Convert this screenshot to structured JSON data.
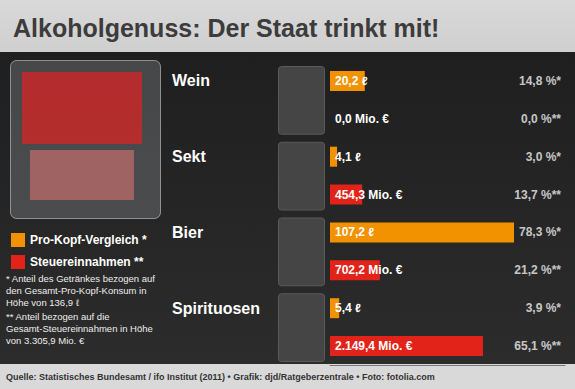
{
  "chart_data": {
    "type": "bar",
    "orientation": "horizontal",
    "title": "Alkoholgenuss: Der Staat trinkt mit!",
    "categories": [
      "Wein",
      "Sekt",
      "Bier",
      "Spirituosen"
    ],
    "series": [
      {
        "name": "Pro-Kopf-Vergleich *",
        "color": "#f39200",
        "values": [
          14.8,
          3.0,
          78.3,
          3.9
        ],
        "value_labels": [
          "14,8 %*",
          "3,0 %*",
          "78,3 %*",
          "3,9 %*"
        ],
        "amount_labels": [
          "20,2 ℓ",
          "4,1 ℓ",
          "107,2 ℓ",
          "5,4 ℓ"
        ]
      },
      {
        "name": "Steuereinnahmen **",
        "color": "#e2231a",
        "values": [
          0.0,
          13.7,
          21.2,
          65.1
        ],
        "value_labels": [
          "0,0 %**",
          "13,7 %**",
          "21,2 %**",
          "65,1 %**"
        ],
        "amount_labels": [
          "0,0 Mio. €",
          "454,3 Mio. €",
          "702,2 Mio. €",
          "2.149,4 Mio. €"
        ]
      }
    ],
    "xlim": [
      0,
      100
    ],
    "tick_labels": "y",
    "grid": false,
    "data_labels": true,
    "legend": "left",
    "footnotes": [
      "* Anteil des Getränkes bezogen auf den Gesamt-Pro-Kopf-Konsum in Höhe von 136,9 ℓ",
      "** Anteil bezogen auf die Gesamt-Steuereinnahmen in Höhe von 3.305,9 Mio. €"
    ],
    "source": "Quelle: Statistisches Bundesamt / ifo Institut (2011) • Grafik: djd/Ratgeberzentrale • Foto: fotolia.com"
  }
}
